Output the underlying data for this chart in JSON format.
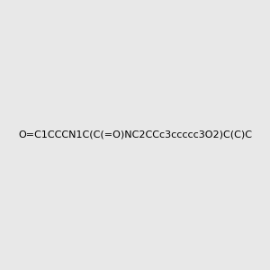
{
  "smiles": "O=C1CCCN1C(C(=O)NC2CCc3ccccc3O2)C(C)C",
  "image_size": 300,
  "background_color": "#e8e8e8",
  "bond_color": "#000000",
  "atom_colors": {
    "N": "#0000ff",
    "O": "#ff0000",
    "C": "#000000",
    "H": "#000000"
  },
  "title": "",
  "padding": 0.1
}
